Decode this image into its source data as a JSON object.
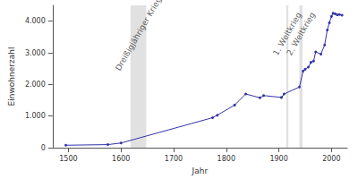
{
  "chart_data": {
    "type": "line",
    "x_label": "Jahr",
    "y_label": "Einwohnerzahl",
    "x": [
      1495,
      1575,
      1600,
      1774,
      1783,
      1816,
      1837,
      1864,
      1871,
      1905,
      1910,
      1939,
      1946,
      1950,
      1956,
      1961,
      1966,
      1970,
      1980,
      1987,
      1992,
      1996,
      2000,
      2003,
      2007,
      2011,
      2015,
      2020
    ],
    "values": [
      80,
      100,
      150,
      950,
      1030,
      1350,
      1700,
      1580,
      1650,
      1590,
      1700,
      1920,
      2420,
      2480,
      2550,
      2700,
      2740,
      3030,
      2960,
      3250,
      3720,
      3950,
      4150,
      4250,
      4230,
      4200,
      4210,
      4190
    ],
    "color": "#3333aa",
    "marker": "circle",
    "xlim": [
      1470,
      2030
    ],
    "xticks": [
      1500,
      1600,
      1700,
      1800,
      1900,
      2000
    ],
    "ylim": [
      0,
      4500
    ],
    "yticks": [
      0,
      {
        "value": 1000,
        "label": "1.000"
      },
      {
        "value": 2000,
        "label": "2.000"
      },
      {
        "value": 3000,
        "label": "3.000"
      },
      {
        "value": 4000,
        "label": "4.000"
      }
    ],
    "grid": false,
    "annotations": [
      {
        "label": "Dreißigjähriger Krieg",
        "x_start": 1618,
        "x_end": 1648
      },
      {
        "label": "1. Weltkrieg",
        "x_start": 1914,
        "x_end": 1918
      },
      {
        "label": "2. Weltkrieg",
        "x_start": 1939,
        "x_end": 1945
      }
    ]
  }
}
